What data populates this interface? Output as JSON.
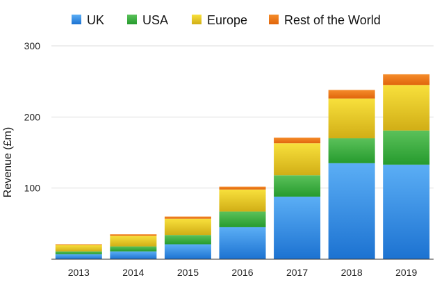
{
  "chart_data": {
    "type": "bar",
    "stacked": true,
    "categories": [
      "2013",
      "2014",
      "2015",
      "2016",
      "2017",
      "2018",
      "2019"
    ],
    "series": [
      {
        "name": "UK",
        "values": [
          7,
          11,
          21,
          45,
          88,
          135,
          133
        ],
        "color_top": "#5BAEF5",
        "color_bottom": "#1C72D1"
      },
      {
        "name": "USA",
        "values": [
          4,
          7,
          13,
          22,
          30,
          35,
          48
        ],
        "color_top": "#5BC15A",
        "color_bottom": "#269B2E"
      },
      {
        "name": "Europe",
        "values": [
          9,
          15,
          23,
          31,
          45,
          56,
          64
        ],
        "color_top": "#F8E03C",
        "color_bottom": "#D1AE16"
      },
      {
        "name": "Rest of the World",
        "values": [
          1,
          2,
          3,
          4,
          8,
          12,
          15
        ],
        "color_top": "#F58C2A",
        "color_bottom": "#E0650C"
      }
    ],
    "ylabel": "Revenue (£m)",
    "xlabel": "",
    "ylim": [
      0,
      300
    ],
    "yticks": [
      100,
      200,
      300
    ],
    "grid": true,
    "legend_position": "top"
  }
}
